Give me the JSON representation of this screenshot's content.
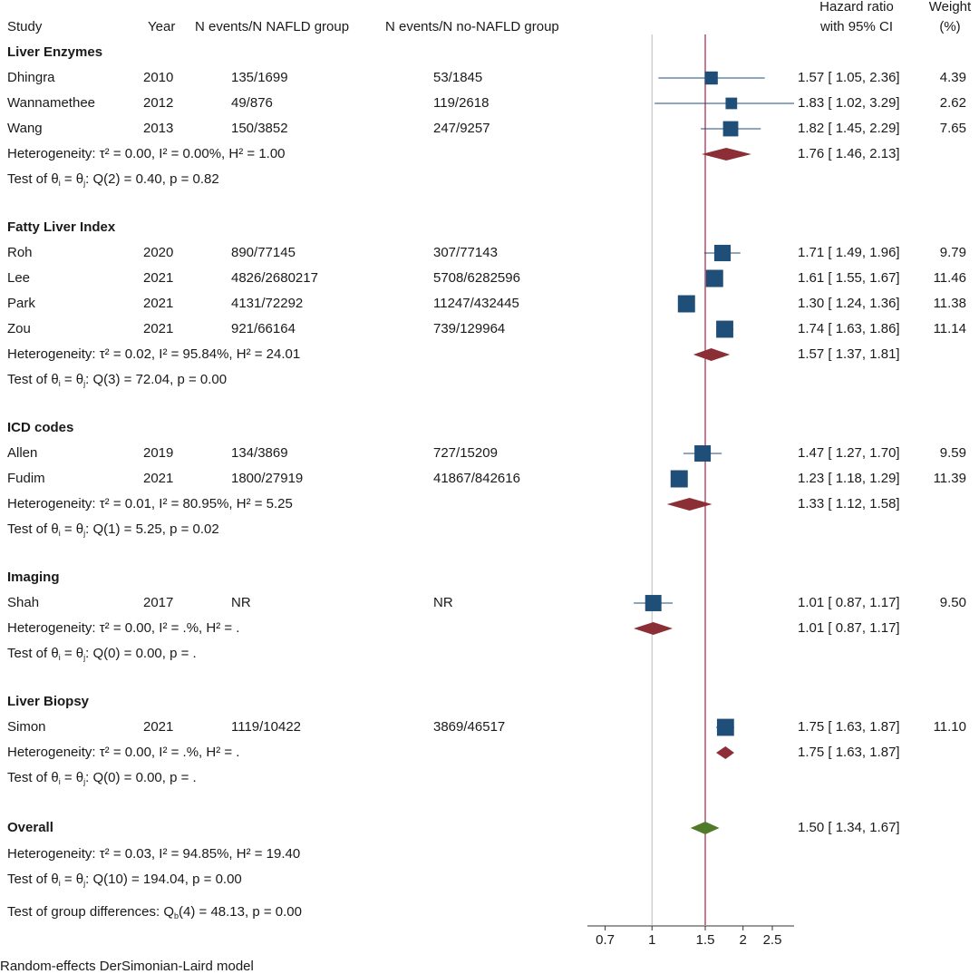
{
  "headers": {
    "study": "Study",
    "year": "Year",
    "nafld": "N events/N NAFLD group",
    "nonafld": "N events/N no-NAFLD group",
    "hr_line1": "Hazard ratio",
    "hr_line2": "with 95% CI",
    "weight_line1": "Weight",
    "weight_line2": "(%)"
  },
  "footnote": "Random-effects DerSimonian-Laird model",
  "chart_data": {
    "type": "forest",
    "xscale": "log",
    "xlim": [
      0.62,
      2.95
    ],
    "ticks": [
      0.7,
      1,
      1.5,
      2,
      2.5
    ],
    "tick_labels": [
      "0.7",
      "1",
      "1.5",
      "2",
      "2.5"
    ],
    "null_line": 1,
    "overall_line": 1.5,
    "colors": {
      "study": "#1f4e79",
      "subgroup_diamond": "#8b2e35",
      "overall_diamond": "#4f7a2a",
      "overall_line": "#b03050",
      "null_line": "#bbbbbb"
    },
    "groups": [
      {
        "name": "Liver Enzymes",
        "studies": [
          {
            "study": "Dhingra",
            "year": "2010",
            "nafld": "135/1699",
            "nonafld": "53/1845",
            "hr": 1.57,
            "lo": 1.05,
            "hi": 2.36,
            "ci": "1.57 [ 1.05,  2.36]",
            "weight": "4.39",
            "w": 4.39
          },
          {
            "study": "Wannamethee",
            "year": "2012",
            "nafld": "49/876",
            "nonafld": "119/2618",
            "hr": 1.83,
            "lo": 1.02,
            "hi": 3.29,
            "ci": "1.83 [ 1.02,  3.29]",
            "weight": "2.62",
            "w": 2.62
          },
          {
            "study": "Wang",
            "year": "2013",
            "nafld": "150/3852",
            "nonafld": "247/9257",
            "hr": 1.82,
            "lo": 1.45,
            "hi": 2.29,
            "ci": "1.82 [ 1.45,  2.29]",
            "weight": "7.65",
            "w": 7.65
          }
        ],
        "pooled": {
          "hr": 1.76,
          "lo": 1.46,
          "hi": 2.13,
          "ci": "1.76 [ 1.46,  2.13]"
        },
        "het": "Heterogeneity: τ² = 0.00, I² = 0.00%, H² = 1.00",
        "test": {
          "pre": "Test of θ",
          "sub_i": "i",
          "mid": " = θ",
          "sub_j": "j",
          "post": ": Q(2) = 0.40, p = 0.82"
        }
      },
      {
        "name": "Fatty Liver Index",
        "studies": [
          {
            "study": "Roh",
            "year": "2020",
            "nafld": "890/77145",
            "nonafld": "307/77143",
            "hr": 1.71,
            "lo": 1.49,
            "hi": 1.96,
            "ci": "1.71 [ 1.49,  1.96]",
            "weight": "9.79",
            "w": 9.79
          },
          {
            "study": "Lee",
            "year": "2021",
            "nafld": "4826/2680217",
            "nonafld": "5708/6282596",
            "hr": 1.61,
            "lo": 1.55,
            "hi": 1.67,
            "ci": "1.61 [ 1.55,  1.67]",
            "weight": "11.46",
            "w": 11.46
          },
          {
            "study": "Park",
            "year": "2021",
            "nafld": "4131/72292",
            "nonafld": "11247/432445",
            "hr": 1.3,
            "lo": 1.24,
            "hi": 1.36,
            "ci": "1.30 [ 1.24,  1.36]",
            "weight": "11.38",
            "w": 11.38
          },
          {
            "study": "Zou",
            "year": "2021",
            "nafld": "921/66164",
            "nonafld": "739/129964",
            "hr": 1.74,
            "lo": 1.63,
            "hi": 1.86,
            "ci": "1.74 [ 1.63,  1.86]",
            "weight": "11.14",
            "w": 11.14
          }
        ],
        "pooled": {
          "hr": 1.57,
          "lo": 1.37,
          "hi": 1.81,
          "ci": "1.57 [ 1.37,  1.81]"
        },
        "het": "Heterogeneity: τ² = 0.02, I² = 95.84%, H² = 24.01",
        "test": {
          "pre": "Test of θ",
          "sub_i": "i",
          "mid": " = θ",
          "sub_j": "j",
          "post": ": Q(3) = 72.04, p = 0.00"
        }
      },
      {
        "name": "ICD codes",
        "studies": [
          {
            "study": "Allen",
            "year": "2019",
            "nafld": "134/3869",
            "nonafld": "727/15209",
            "hr": 1.47,
            "lo": 1.27,
            "hi": 1.7,
            "ci": "1.47 [ 1.27,  1.70]",
            "weight": "9.59",
            "w": 9.59
          },
          {
            "study": "Fudim",
            "year": "2021",
            "nafld": "1800/27919",
            "nonafld": "41867/842616",
            "hr": 1.23,
            "lo": 1.18,
            "hi": 1.29,
            "ci": "1.23 [ 1.18,  1.29]",
            "weight": "11.39",
            "w": 11.39
          }
        ],
        "pooled": {
          "hr": 1.33,
          "lo": 1.12,
          "hi": 1.58,
          "ci": "1.33 [ 1.12,  1.58]"
        },
        "het": "Heterogeneity: τ² = 0.01, I² = 80.95%, H² = 5.25",
        "test": {
          "pre": "Test of θ",
          "sub_i": "i",
          "mid": " = θ",
          "sub_j": "j",
          "post": ": Q(1) = 5.25, p = 0.02"
        }
      },
      {
        "name": "Imaging",
        "studies": [
          {
            "study": "Shah",
            "year": "2017",
            "nafld": "NR",
            "nonafld": "NR",
            "hr": 1.01,
            "lo": 0.87,
            "hi": 1.17,
            "ci": "1.01 [ 0.87,  1.17]",
            "weight": "9.50",
            "w": 9.5
          }
        ],
        "pooled": {
          "hr": 1.01,
          "lo": 0.87,
          "hi": 1.17,
          "ci": "1.01 [ 0.87,  1.17]"
        },
        "het": "Heterogeneity: τ² = 0.00, I² = .%, H² = .",
        "test": {
          "pre": "Test of θ",
          "sub_i": "i",
          "mid": " = θ",
          "sub_j": "j",
          "post": ": Q(0) = 0.00, p = ."
        }
      },
      {
        "name": "Liver Biopsy",
        "studies": [
          {
            "study": "Simon",
            "year": "2021",
            "nafld": "1119/10422",
            "nonafld": "3869/46517",
            "hr": 1.75,
            "lo": 1.63,
            "hi": 1.87,
            "ci": "1.75 [ 1.63,  1.87]",
            "weight": "11.10",
            "w": 11.1
          }
        ],
        "pooled": {
          "hr": 1.75,
          "lo": 1.63,
          "hi": 1.87,
          "ci": "1.75 [ 1.63,  1.87]"
        },
        "het": "Heterogeneity: τ² = 0.00, I² = .%, H² = .",
        "test": {
          "pre": "Test of θ",
          "sub_i": "i",
          "mid": " = θ",
          "sub_j": "j",
          "post": ": Q(0) = 0.00, p = ."
        }
      }
    ],
    "overall": {
      "name": "Overall",
      "hr": 1.5,
      "lo": 1.34,
      "hi": 1.67,
      "ci": "1.50 [ 1.34,  1.67]",
      "het": "Heterogeneity: τ² = 0.03, I² = 94.85%, H² = 19.40",
      "test": {
        "pre": "Test of θ",
        "sub_i": "i",
        "mid": " = θ",
        "sub_j": "j",
        "post": ": Q(10) = 194.04, p = 0.00"
      },
      "group_test": {
        "pre": "Test of group differences: Q",
        "sub": "b",
        "post": "(4) = 48.13, p = 0.00"
      }
    }
  }
}
